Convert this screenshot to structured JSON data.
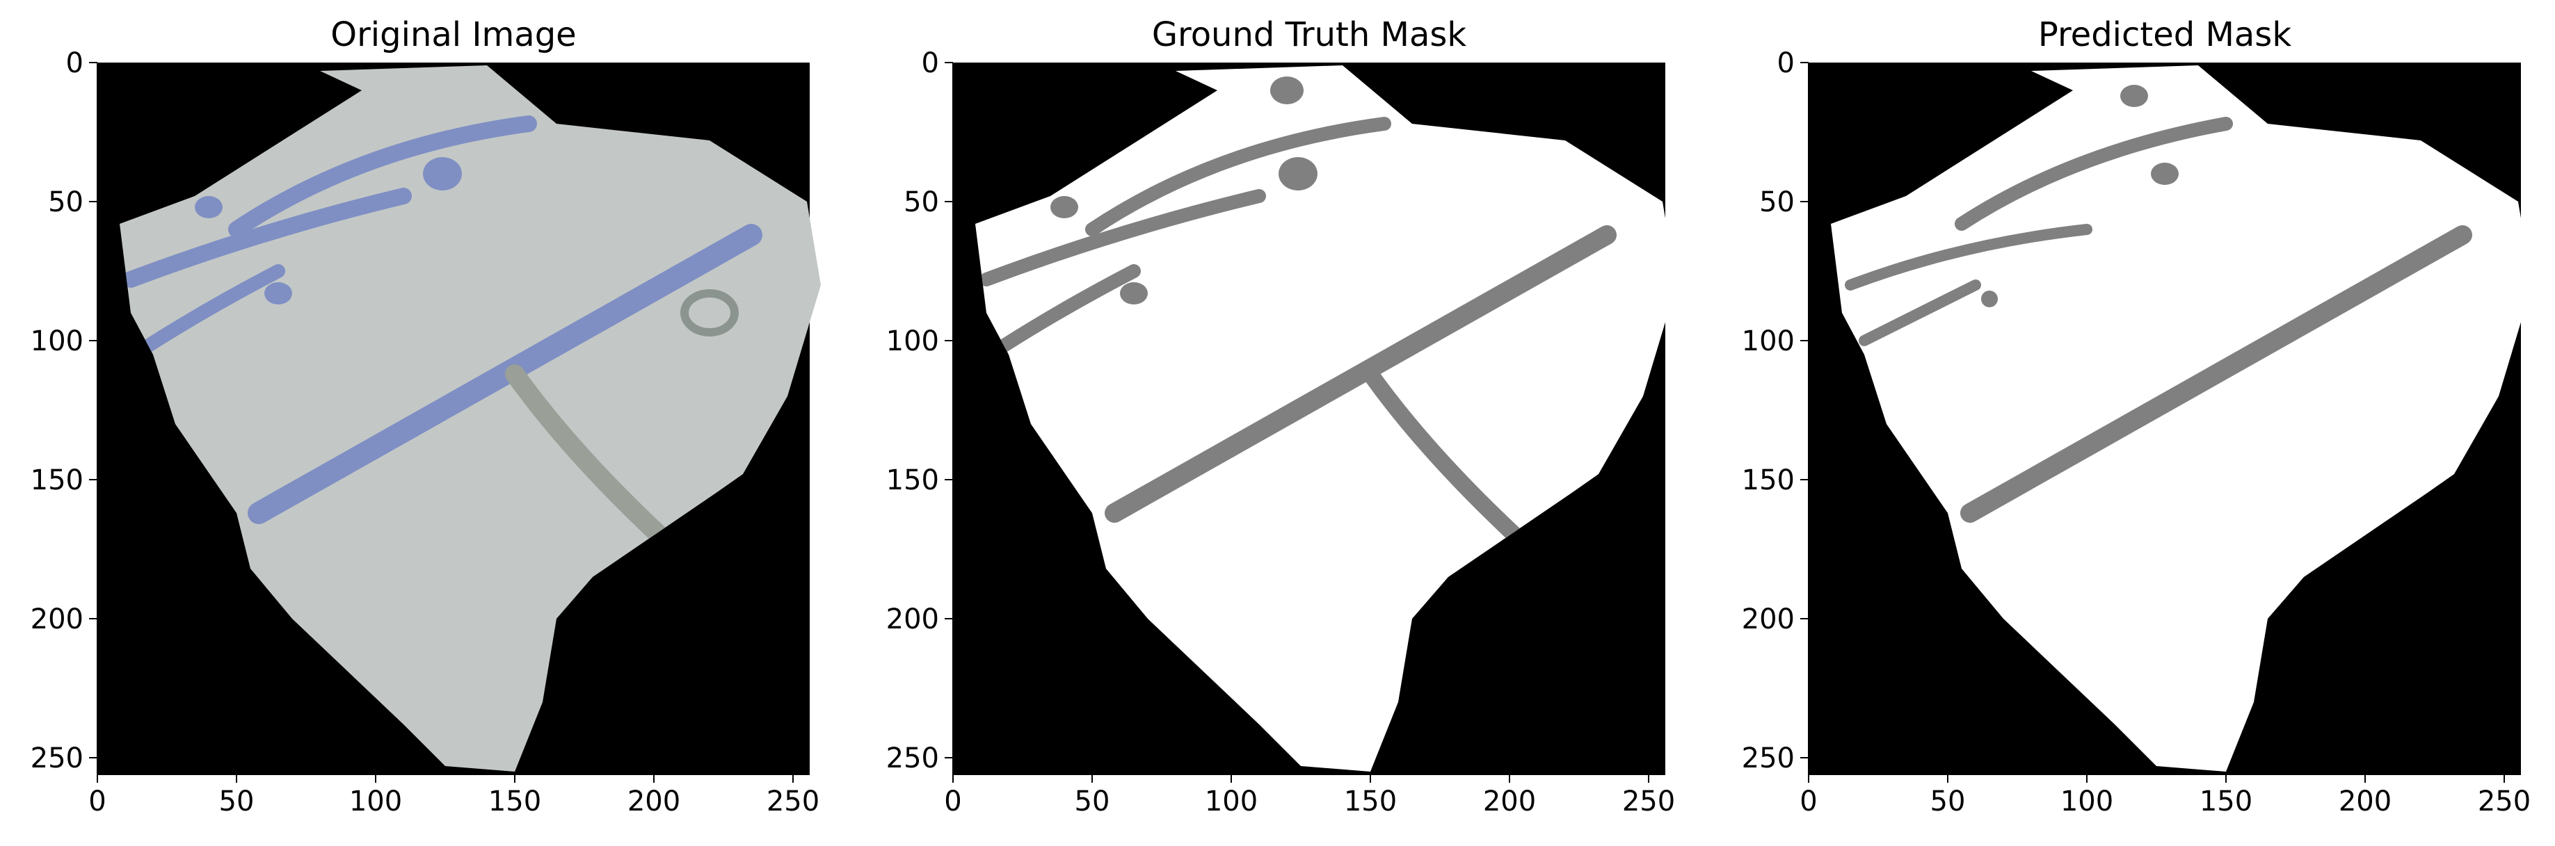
{
  "panels": [
    {
      "title": "Original Image",
      "type": "photo"
    },
    {
      "title": "Ground Truth Mask",
      "type": "mask_gt"
    },
    {
      "title": "Predicted Mask",
      "type": "mask_pred"
    }
  ],
  "axes": {
    "x_ticks": [
      "0",
      "50",
      "100",
      "150",
      "200",
      "250"
    ],
    "y_ticks": [
      "0",
      "50",
      "100",
      "150",
      "200",
      "250"
    ]
  },
  "colors": {
    "background": "#000000",
    "fragment": "#c3c8c6",
    "blue_stroke": "#7f8fc4",
    "grey_stroke": "#9aa098",
    "mask_fg": "#ffffff",
    "mask_line": "#808080"
  }
}
